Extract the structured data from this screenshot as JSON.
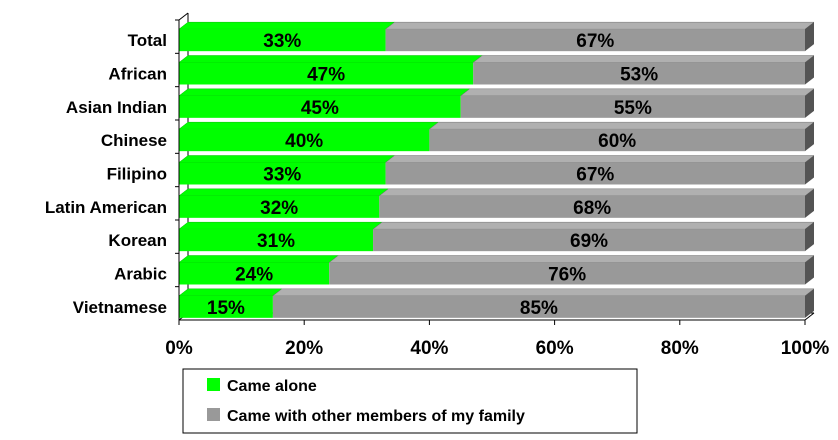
{
  "chart_data": {
    "type": "bar",
    "orientation": "horizontal",
    "stacked": "100%",
    "categories": [
      "Total",
      "African",
      "Asian Indian",
      "Chinese",
      "Filipino",
      "Latin American",
      "Korean",
      "Arabic",
      "Vietnamese"
    ],
    "series": [
      {
        "name": "Came alone",
        "color": "#00ff00",
        "values": [
          33,
          47,
          45,
          40,
          33,
          32,
          31,
          24,
          15
        ],
        "labels": [
          "33%",
          "47%",
          "45%",
          "40%",
          "33%",
          "32%",
          "31%",
          "24%",
          "15%"
        ]
      },
      {
        "name": "Came with other members of my family",
        "color": "#999999",
        "values": [
          67,
          53,
          55,
          60,
          67,
          68,
          69,
          76,
          85
        ],
        "labels": [
          "67%",
          "53%",
          "55%",
          "60%",
          "67%",
          "68%",
          "69%",
          "76%",
          "85%"
        ]
      }
    ],
    "x_ticks": [
      "0%",
      "20%",
      "40%",
      "60%",
      "80%",
      "100%"
    ],
    "xlim": [
      0,
      100
    ],
    "grid": false,
    "legend_position": "bottom"
  }
}
